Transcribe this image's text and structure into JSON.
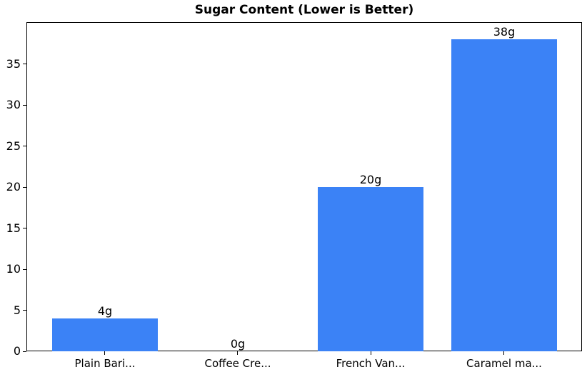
{
  "chart_data": {
    "type": "bar",
    "title": "Sugar Content (Lower is Better)",
    "categories": [
      "Plain Bari...",
      "Coffee Cre...",
      "French Van...",
      "Caramel ma..."
    ],
    "values": [
      4,
      0,
      20,
      38
    ],
    "bar_labels": [
      "4g",
      "0g",
      "20g",
      "38g"
    ],
    "xlabel": "",
    "ylabel": "",
    "yticks": [
      0,
      5,
      10,
      15,
      20,
      25,
      30,
      35
    ],
    "ytick_labels": [
      "0",
      "5",
      "10",
      "15",
      "20",
      "25",
      "30",
      "35"
    ],
    "ylim": [
      0,
      40.1
    ],
    "bar_color": "#3B82F6",
    "axis_color": "#000000",
    "text_color": "#000000",
    "background_color": "#ffffff",
    "grid": false,
    "legend": null
  }
}
